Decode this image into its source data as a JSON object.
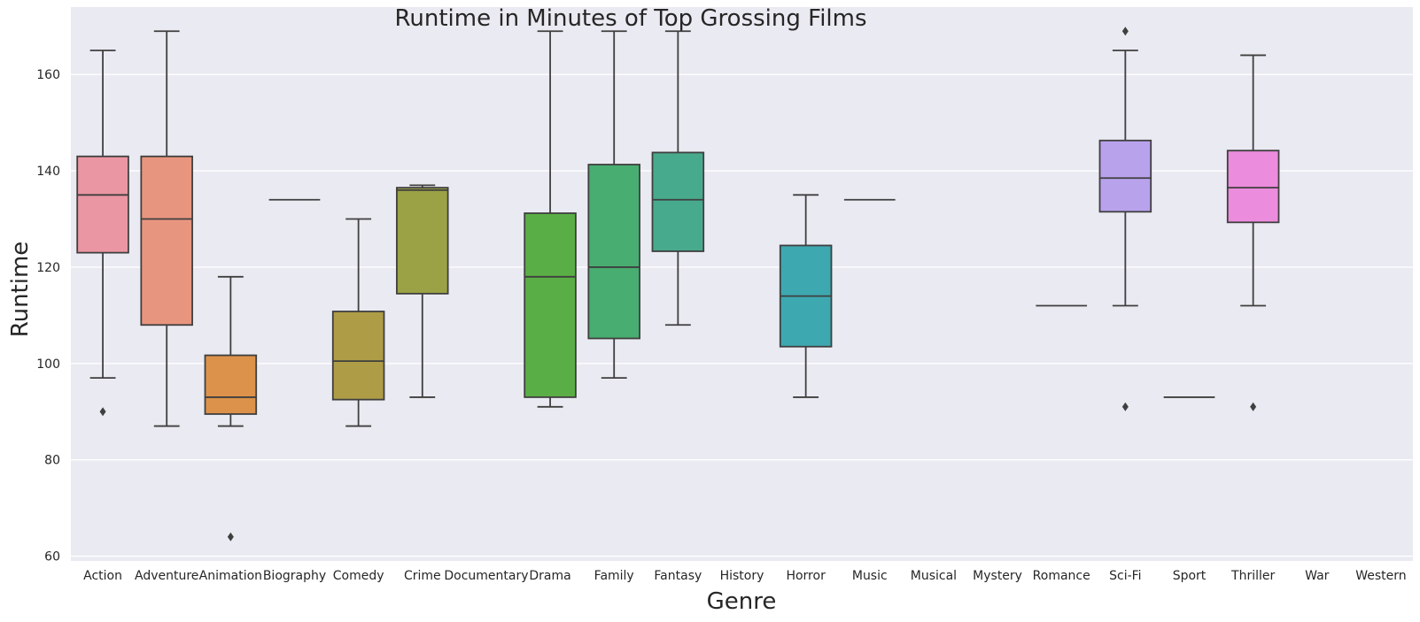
{
  "chart_data": {
    "type": "box",
    "title": "Runtime in Minutes of Top Grossing Films",
    "xlabel": "Genre",
    "ylabel": "Runtime",
    "ylim": [
      59,
      174
    ],
    "yticks": [
      60,
      80,
      100,
      120,
      140,
      160
    ],
    "grid": true,
    "legend": "none",
    "categories": [
      "Action",
      "Adventure",
      "Animation",
      "Biography",
      "Comedy",
      "Crime",
      "Documentary",
      "Drama",
      "Family",
      "Fantasy",
      "History",
      "Horror",
      "Music",
      "Musical",
      "Mystery",
      "Romance",
      "Sci-Fi",
      "Sport",
      "Thriller",
      "War",
      "Western"
    ],
    "series": [
      {
        "category": "Action",
        "color": "#ea96a3",
        "whisker_low": 97,
        "q1": 123,
        "median": 135,
        "q3": 143,
        "whisker_high": 165,
        "outliers": [
          90
        ]
      },
      {
        "category": "Adventure",
        "color": "#e8957f",
        "whisker_low": 87,
        "q1": 108,
        "median": 130,
        "q3": 143,
        "whisker_high": 169,
        "outliers": []
      },
      {
        "category": "Animation",
        "color": "#dc924a",
        "whisker_low": 87,
        "q1": 89.5,
        "median": 93,
        "q3": 101.7,
        "whisker_high": 118,
        "outliers": [
          64
        ]
      },
      {
        "category": "Biography",
        "color": "#c39b44",
        "whisker_low": 134,
        "q1": 134,
        "median": 134,
        "q3": 134,
        "whisker_high": 134,
        "outliers": []
      },
      {
        "category": "Comedy",
        "color": "#ae9d46",
        "whisker_low": 87,
        "q1": 92.5,
        "median": 100.5,
        "q3": 110.8,
        "whisker_high": 130,
        "outliers": []
      },
      {
        "category": "Crime",
        "color": "#9ba245",
        "whisker_low": 93,
        "q1": 114.5,
        "median": 136,
        "q3": 136.5,
        "whisker_high": 137,
        "outliers": []
      },
      {
        "category": "Documentary",
        "color": "#7ea847",
        "whisker_low": null,
        "q1": null,
        "median": null,
        "q3": null,
        "whisker_high": null,
        "outliers": []
      },
      {
        "category": "Drama",
        "color": "#5aae46",
        "whisker_low": 91,
        "q1": 93,
        "median": 118,
        "q3": 131.2,
        "whisker_high": 169,
        "outliers": []
      },
      {
        "category": "Family",
        "color": "#48ad70",
        "whisker_low": 97,
        "q1": 105.2,
        "median": 120,
        "q3": 141.3,
        "whisker_high": 169,
        "outliers": []
      },
      {
        "category": "Fantasy",
        "color": "#48aa8c",
        "whisker_low": 108,
        "q1": 123.3,
        "median": 134,
        "q3": 143.8,
        "whisker_high": 169,
        "outliers": []
      },
      {
        "category": "History",
        "color": "#48a99c",
        "whisker_low": null,
        "q1": null,
        "median": null,
        "q3": null,
        "whisker_high": null,
        "outliers": []
      },
      {
        "category": "Horror",
        "color": "#3ea8b0",
        "whisker_low": 93,
        "q1": 103.5,
        "median": 114,
        "q3": 124.5,
        "whisker_high": 135,
        "outliers": []
      },
      {
        "category": "Music",
        "color": "#41a8c2",
        "whisker_low": 134,
        "q1": 134,
        "median": 134,
        "q3": 134,
        "whisker_high": 134,
        "outliers": []
      },
      {
        "category": "Musical",
        "color": "#4aa6d6",
        "whisker_low": null,
        "q1": null,
        "median": null,
        "q3": null,
        "whisker_high": null,
        "outliers": []
      },
      {
        "category": "Mystery",
        "color": "#74a3e4",
        "whisker_low": null,
        "q1": null,
        "median": null,
        "q3": null,
        "whisker_high": null,
        "outliers": []
      },
      {
        "category": "Romance",
        "color": "#9a9ced",
        "whisker_low": 112,
        "q1": 112,
        "median": 112,
        "q3": 112,
        "whisker_high": 112,
        "outliers": []
      },
      {
        "category": "Sci-Fi",
        "color": "#b9a2ec",
        "whisker_low": 112,
        "q1": 131.5,
        "median": 138.5,
        "q3": 146.3,
        "whisker_high": 165,
        "outliers": [
          91,
          169
        ]
      },
      {
        "category": "Sport",
        "color": "#d59be6",
        "whisker_low": 93,
        "q1": 93,
        "median": 93,
        "q3": 93,
        "whisker_high": 93,
        "outliers": []
      },
      {
        "category": "Thriller",
        "color": "#ec8cdd",
        "whisker_low": 112,
        "q1": 129.3,
        "median": 136.5,
        "q3": 144.2,
        "whisker_high": 164,
        "outliers": [
          91
        ]
      },
      {
        "category": "War",
        "color": "#ef8fc8",
        "whisker_low": null,
        "q1": null,
        "median": null,
        "q3": null,
        "whisker_high": null,
        "outliers": []
      },
      {
        "category": "Western",
        "color": "#ef93b4",
        "whisker_low": null,
        "q1": null,
        "median": null,
        "q3": null,
        "whisker_high": null,
        "outliers": []
      }
    ]
  }
}
